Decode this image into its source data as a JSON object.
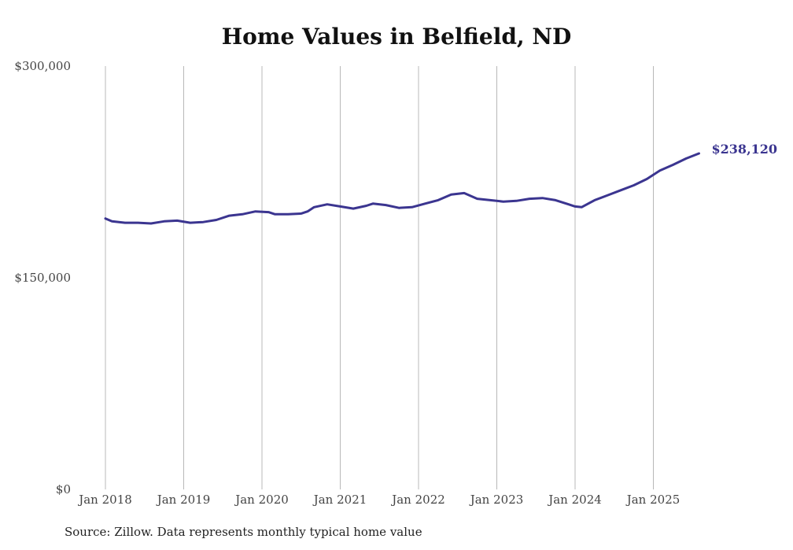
{
  "chart_data": {
    "type": "line",
    "title": "Home Values in Belfield, ND",
    "source": "Source: Zillow. Data represents monthly typical home value",
    "end_label": "$238,120",
    "line_color": "#3b3590",
    "grid": "vertical",
    "ylim": [
      0,
      300000
    ],
    "y_ticks": [
      {
        "value": 0,
        "label": "$0"
      },
      {
        "value": 150000,
        "label": "$150,000"
      },
      {
        "value": 300000,
        "label": "$300,000"
      }
    ],
    "x_ticks": [
      {
        "value": "2018-01",
        "label": "Jan 2018"
      },
      {
        "value": "2019-01",
        "label": "Jan 2019"
      },
      {
        "value": "2020-01",
        "label": "Jan 2020"
      },
      {
        "value": "2021-01",
        "label": "Jan 2021"
      },
      {
        "value": "2022-01",
        "label": "Jan 2022"
      },
      {
        "value": "2023-01",
        "label": "Jan 2023"
      },
      {
        "value": "2024-01",
        "label": "Jan 2024"
      },
      {
        "value": "2025-01",
        "label": "Jan 2025"
      }
    ],
    "series": [
      {
        "points": [
          [
            "2018-01",
            192000
          ],
          [
            "2018-02",
            190000
          ],
          [
            "2018-04",
            189000
          ],
          [
            "2018-06",
            189000
          ],
          [
            "2018-08",
            188500
          ],
          [
            "2018-10",
            190000
          ],
          [
            "2018-12",
            190500
          ],
          [
            "2019-02",
            189000
          ],
          [
            "2019-04",
            189500
          ],
          [
            "2019-06",
            191000
          ],
          [
            "2019-08",
            194000
          ],
          [
            "2019-10",
            195000
          ],
          [
            "2019-12",
            197000
          ],
          [
            "2020-02",
            196500
          ],
          [
            "2020-03",
            195000
          ],
          [
            "2020-05",
            195000
          ],
          [
            "2020-07",
            195500
          ],
          [
            "2020-08",
            197000
          ],
          [
            "2020-09",
            200000
          ],
          [
            "2020-11",
            202000
          ],
          [
            "2021-01",
            200500
          ],
          [
            "2021-03",
            199000
          ],
          [
            "2021-05",
            201000
          ],
          [
            "2021-06",
            202500
          ],
          [
            "2021-08",
            201500
          ],
          [
            "2021-10",
            199500
          ],
          [
            "2021-12",
            200000
          ],
          [
            "2022-02",
            202500
          ],
          [
            "2022-04",
            205000
          ],
          [
            "2022-06",
            209000
          ],
          [
            "2022-08",
            210000
          ],
          [
            "2022-10",
            206000
          ],
          [
            "2022-12",
            205000
          ],
          [
            "2023-02",
            204000
          ],
          [
            "2023-04",
            204500
          ],
          [
            "2023-06",
            206000
          ],
          [
            "2023-08",
            206500
          ],
          [
            "2023-10",
            205000
          ],
          [
            "2023-12",
            202000
          ],
          [
            "2024-01",
            200500
          ],
          [
            "2024-02",
            200000
          ],
          [
            "2024-04",
            205000
          ],
          [
            "2024-06",
            208500
          ],
          [
            "2024-08",
            212000
          ],
          [
            "2024-10",
            215500
          ],
          [
            "2024-12",
            220000
          ],
          [
            "2025-02",
            226000
          ],
          [
            "2025-04",
            230000
          ],
          [
            "2025-06",
            234500
          ],
          [
            "2025-08",
            238120
          ]
        ]
      }
    ]
  }
}
